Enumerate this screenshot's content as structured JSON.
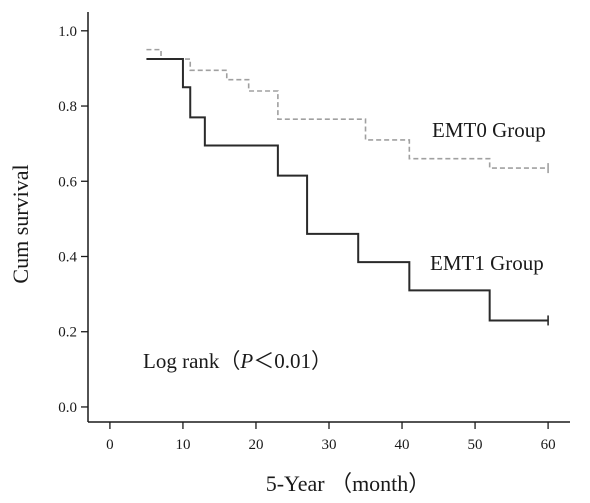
{
  "chart_data": {
    "type": "line",
    "title": "",
    "xlabel": "5-Year （month）",
    "ylabel": "Cum survival",
    "xlim": [
      -3,
      63
    ],
    "ylim": [
      -0.04,
      1.05
    ],
    "x_ticks": [
      0,
      10,
      20,
      30,
      40,
      50,
      60
    ],
    "y_ticks": [
      0.0,
      0.2,
      0.4,
      0.6,
      0.8,
      1.0
    ],
    "x_tick_labels": [
      "0",
      "10",
      "20",
      "30",
      "40",
      "50",
      "60"
    ],
    "y_tick_labels": [
      "0.0",
      "0.2",
      "0.4",
      "0.6",
      "0.8",
      "1.0"
    ],
    "grid": false,
    "step": true,
    "series": [
      {
        "name": "EMT0 Group",
        "color": "#a0a0a0",
        "dash": "dashed",
        "x": [
          5,
          7,
          10,
          11,
          16,
          19,
          23,
          29,
          35,
          41,
          50,
          52,
          60
        ],
        "y": [
          0.95,
          0.925,
          0.925,
          0.895,
          0.87,
          0.84,
          0.765,
          0.765,
          0.71,
          0.66,
          0.66,
          0.635,
          0.635
        ]
      },
      {
        "name": "EMT1 Group",
        "color": "#2a2a2a",
        "dash": "solid",
        "x": [
          5,
          10,
          11,
          13,
          23,
          27,
          34,
          41,
          52,
          60
        ],
        "y": [
          0.925,
          0.85,
          0.77,
          0.695,
          0.615,
          0.46,
          0.385,
          0.31,
          0.23,
          0.23
        ]
      }
    ],
    "annotations": [
      {
        "text": "EMT0 Group",
        "series": 0
      },
      {
        "text": "EMT1 Group",
        "series": 1
      },
      {
        "text_prefix": "Log rank（",
        "text_italic": "P",
        "text_suffix": "＜0.01）"
      }
    ]
  }
}
